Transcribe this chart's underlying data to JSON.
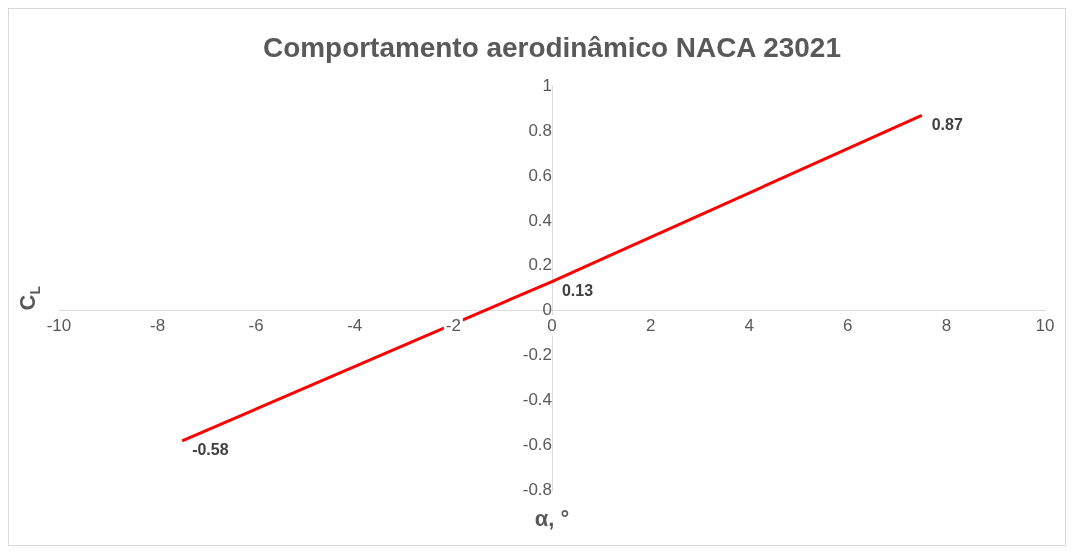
{
  "chart_data": {
    "type": "line",
    "title": "Comportamento aerodinâmico NACA 23021",
    "xlabel": "α, °",
    "ylabel": "C$_{L}$",
    "x": [
      -7.5,
      0,
      7.5
    ],
    "series": [
      {
        "color": "#ff0000",
        "values": [
          -0.58,
          0.13,
          0.87
        ]
      }
    ],
    "xlim": [
      -10,
      10
    ],
    "xticks": [
      -10,
      -8,
      -6,
      -4,
      -2,
      0,
      2,
      4,
      6,
      8,
      10
    ],
    "ylim": [
      -0.8,
      1
    ],
    "yticks": [
      -0.8,
      -0.6,
      -0.4,
      -0.2,
      0,
      0.2,
      0.4,
      0.6,
      0.8,
      1
    ],
    "grid": false,
    "legend": false,
    "marker": "none",
    "line_style": "solid",
    "data_labels": true
  }
}
